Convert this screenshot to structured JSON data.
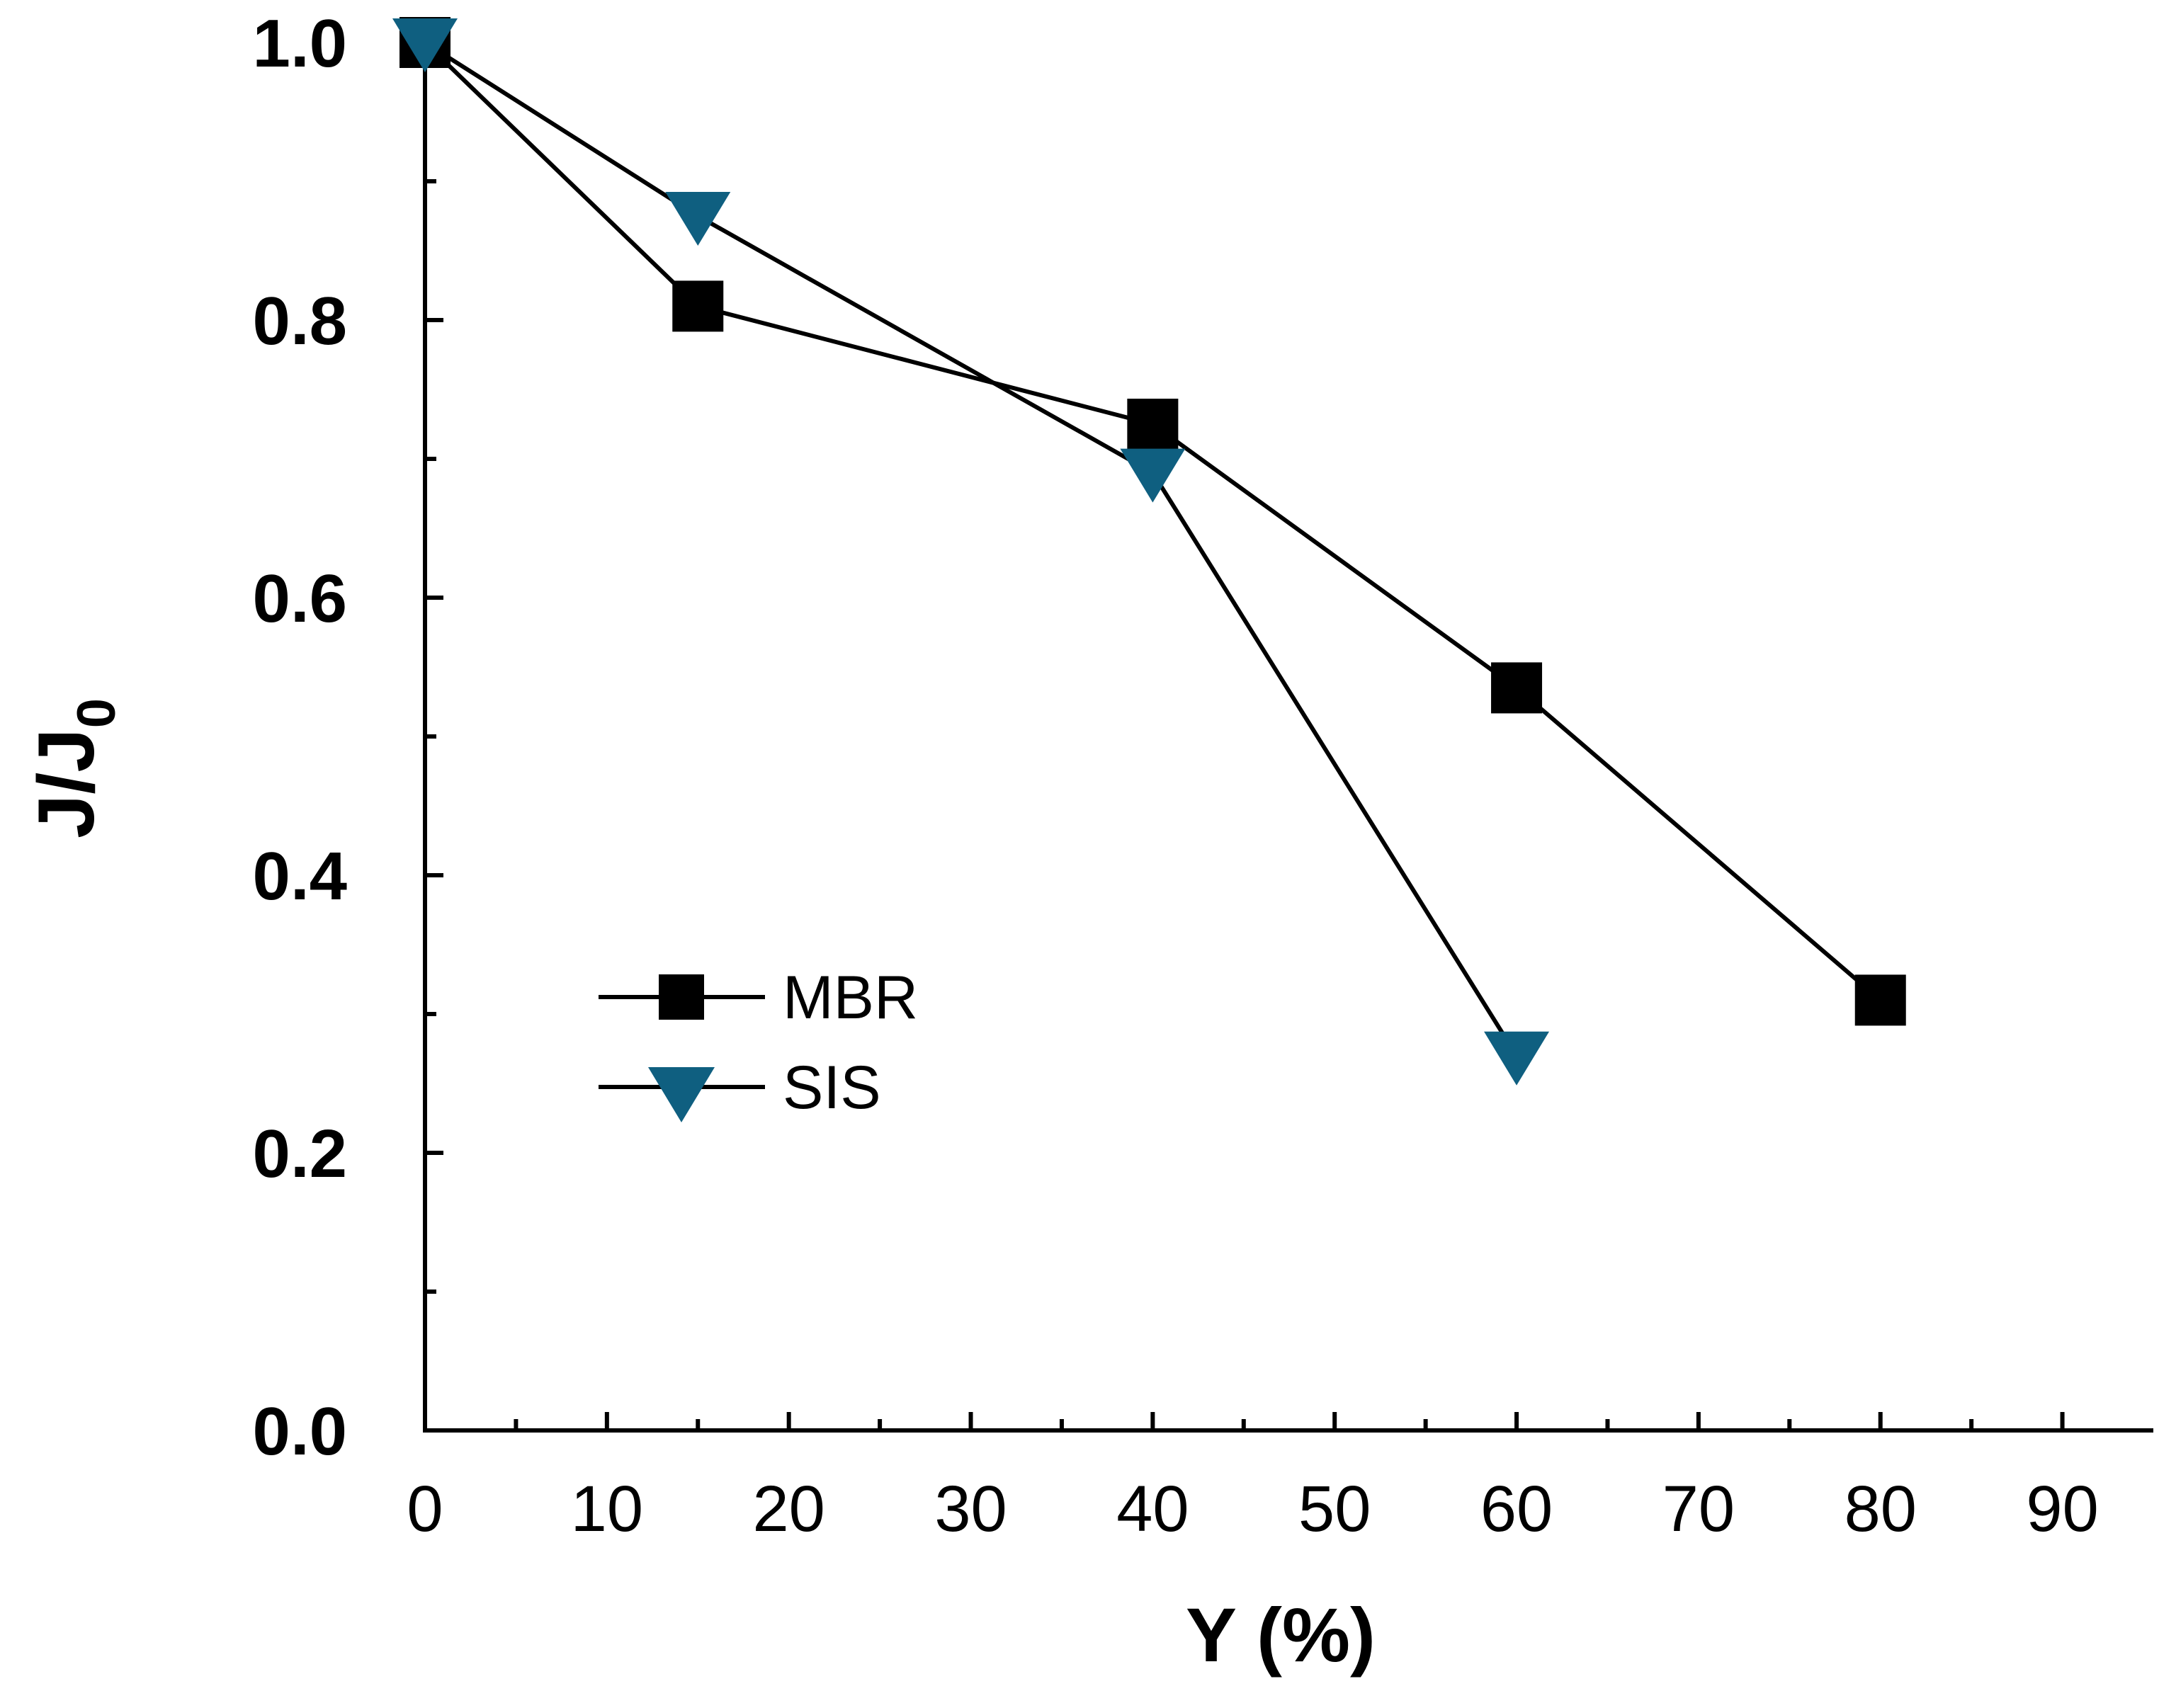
{
  "chart_data": {
    "type": "line",
    "title": "",
    "xlabel": "Y (%)",
    "ylabel": "J/J",
    "ylabel_subscript": "0",
    "xlim": [
      0,
      95
    ],
    "ylim": [
      0,
      1.0
    ],
    "xticks": [
      "0",
      "10",
      "20",
      "30",
      "40",
      "50",
      "60",
      "70",
      "80",
      "90"
    ],
    "yticks": [
      "0.0",
      "0.2",
      "0.4",
      "0.6",
      "0.8",
      "1.0"
    ],
    "grid": false,
    "legend_position": "lower-left",
    "series": [
      {
        "name": "MBR",
        "marker": "square",
        "color": "#000000",
        "x": [
          0,
          15,
          40,
          60,
          80
        ],
        "y": [
          1.0,
          0.81,
          0.725,
          0.535,
          0.31
        ]
      },
      {
        "name": "SIS",
        "marker": "triangle-down",
        "color": "#0f5f80",
        "x": [
          0,
          15,
          40,
          60
        ],
        "y": [
          1.0,
          0.875,
          0.69,
          0.27
        ]
      }
    ]
  }
}
